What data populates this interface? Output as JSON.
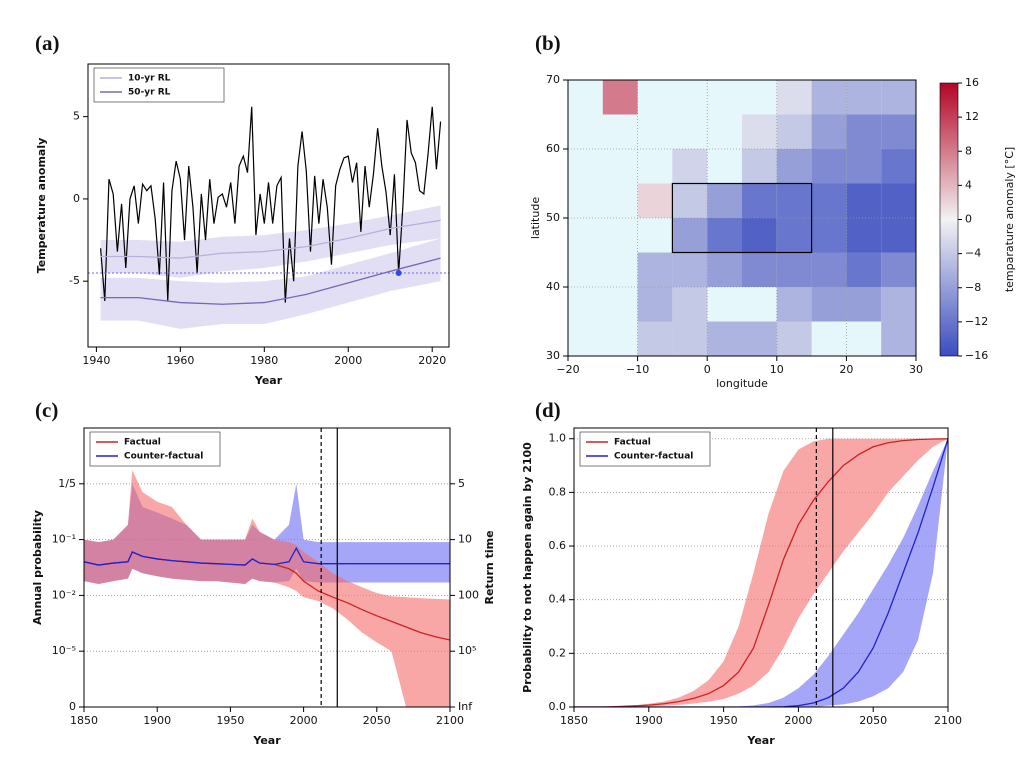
{
  "chart_data": [
    {
      "type": "line",
      "label": "(a)",
      "xlabel": "Year",
      "ylabel": "Temperature anomaly",
      "xlim": [
        1938,
        2024
      ],
      "ylim": [
        -9,
        8.2
      ],
      "xticks": [
        1940,
        1960,
        1980,
        2000,
        2020
      ],
      "yticks": [
        -5,
        0,
        5
      ],
      "legend": "upper left",
      "hline": -4.5,
      "hline_color": "#6666ff",
      "points": [
        {
          "x": 2012,
          "y": -4.5,
          "color": "#3344ee"
        }
      ],
      "series": [
        {
          "color": "#000000",
          "x": [
            1941,
            1942,
            1943,
            1944,
            1945,
            1946,
            1947,
            1948,
            1949,
            1950,
            1951,
            1952,
            1953,
            1954,
            1955,
            1956,
            1957,
            1958,
            1959,
            1960,
            1961,
            1962,
            1963,
            1964,
            1965,
            1966,
            1967,
            1968,
            1969,
            1970,
            1971,
            1972,
            1973,
            1974,
            1975,
            1976,
            1977,
            1978,
            1979,
            1980,
            1981,
            1982,
            1983,
            1984,
            1985,
            1986,
            1987,
            1988,
            1989,
            1990,
            1991,
            1992,
            1993,
            1994,
            1995,
            1996,
            1997,
            1998,
            1999,
            2000,
            2001,
            2002,
            2003,
            2004,
            2005,
            2006,
            2007,
            2008,
            2009,
            2010,
            2011,
            2012,
            2013,
            2014,
            2015,
            2016,
            2017,
            2018,
            2019,
            2020,
            2021,
            2022
          ],
          "values": [
            -3,
            -6.2,
            1.2,
            0.3,
            -3.2,
            -0.3,
            -4.2,
            0,
            0.8,
            -1.5,
            0.9,
            0.5,
            0.8,
            -1.2,
            -4.6,
            1.0,
            -6.2,
            0.5,
            2.3,
            1.2,
            -2.5,
            2,
            -0.5,
            -4.5,
            0.3,
            -2.5,
            1.2,
            -1.5,
            0.1,
            0.3,
            -0.5,
            1,
            -1.5,
            2,
            2.6,
            1.6,
            5.6,
            -2.2,
            0.3,
            -1.5,
            1,
            -1.5,
            0.8,
            1.3,
            -6.3,
            -2.4,
            -5,
            2,
            4.1,
            1.7,
            -3.2,
            1.4,
            -1.5,
            1.2,
            -0.5,
            -4,
            0.8,
            1.8,
            2.5,
            2.6,
            1,
            2.2,
            -2,
            2,
            -0.5,
            1.5,
            4.3,
            2,
            0.4,
            -2.2,
            1.5,
            -4.5,
            -0.5,
            4.8,
            2.8,
            2.2,
            0.5,
            0.3,
            2.7,
            5.6,
            1.8,
            4.7
          ]
        },
        {
          "name": "10-yr RL",
          "color": "#b8b0dc",
          "band_color": "#cfc9ec",
          "x": [
            1941,
            1950,
            1960,
            1970,
            1980,
            1990,
            2000,
            2010,
            2022
          ],
          "values": [
            -3.5,
            -3.5,
            -3.6,
            -3.3,
            -3.2,
            -2.9,
            -2.4,
            -1.8,
            -1.3
          ],
          "lower": [
            -4.5,
            -4.5,
            -4.8,
            -4.4,
            -4.2,
            -3.8,
            -3.3,
            -2.8,
            -2.4
          ],
          "upper": [
            -2.5,
            -2.5,
            -2.6,
            -2.3,
            -2.2,
            -1.9,
            -1.5,
            -1.0,
            -0.4
          ]
        },
        {
          "name": "50-yr RL",
          "color": "#7668b5",
          "band_color": "#cfc9ec",
          "x": [
            1941,
            1950,
            1960,
            1970,
            1980,
            1990,
            2000,
            2010,
            2022
          ],
          "values": [
            -6.0,
            -6.0,
            -6.3,
            -6.4,
            -6.3,
            -5.8,
            -5.1,
            -4.4,
            -3.6
          ],
          "lower": [
            -7.4,
            -7.4,
            -7.9,
            -7.6,
            -7.6,
            -7.0,
            -6.3,
            -5.6,
            -5.0
          ],
          "upper": [
            -4.8,
            -4.8,
            -5.0,
            -5.1,
            -5.0,
            -4.7,
            -4.0,
            -3.3,
            -2.4
          ]
        }
      ]
    },
    {
      "type": "heatmap",
      "label": "(b)",
      "xlabel": "longitude",
      "ylabel": "latitude",
      "clabel": "temparature anomaly [°C]",
      "xlim": [
        -20,
        30
      ],
      "ylim": [
        30,
        70
      ],
      "xticks": [
        {
          "value": -20,
          "label": "−20"
        },
        {
          "value": -10,
          "label": "−10"
        },
        0,
        10,
        20,
        30
      ],
      "yticks": [
        30,
        40,
        50,
        60,
        70
      ],
      "grid": true,
      "xbins": [
        -20,
        -15,
        -10,
        -5,
        0,
        5,
        10,
        15,
        20,
        25,
        30
      ],
      "ybins": [
        70,
        65,
        60,
        55,
        50,
        45,
        40,
        35,
        30
      ],
      "values": [
        [
          null,
          8,
          null,
          null,
          null,
          null,
          -2,
          -6,
          -6,
          -6
        ],
        [
          null,
          null,
          null,
          null,
          null,
          -2,
          -4,
          -8,
          -10,
          -10
        ],
        [
          null,
          null,
          null,
          -3,
          null,
          -4,
          -8,
          -10,
          -10,
          -12
        ],
        [
          null,
          null,
          2,
          -4,
          -8,
          -12,
          -12,
          -12,
          -14,
          -14
        ],
        [
          null,
          null,
          null,
          -8,
          -12,
          -14,
          -12,
          -12,
          -14,
          -14
        ],
        [
          null,
          null,
          -6,
          -6,
          -8,
          -10,
          -10,
          -10,
          -12,
          -10
        ],
        [
          null,
          null,
          -6,
          -4,
          null,
          null,
          -6,
          -8,
          -8,
          -6
        ],
        [
          null,
          null,
          -4,
          -4,
          -6,
          -6,
          -4,
          null,
          null,
          -6
        ]
      ],
      "box": {
        "lon": [
          -5,
          15
        ],
        "lat": [
          45,
          55
        ]
      },
      "clim": [
        -16,
        16
      ],
      "colors": [
        "#3b4cc0",
        "#f2f2f2",
        "#b40426"
      ],
      "cticks": [
        {
          "value": -16,
          "label": "−16"
        },
        {
          "value": -12,
          "label": "−12"
        },
        {
          "value": -8,
          "label": "−8"
        },
        {
          "value": -4,
          "label": "−4"
        },
        0,
        4,
        8,
        12,
        16
      ]
    },
    {
      "type": "line",
      "label": "(c)",
      "xlabel": "Year",
      "ylabel": "Annual probability",
      "y2label": "Return time",
      "xlim": [
        1850,
        2100
      ],
      "ylim": [
        0,
        0.5
      ],
      "yscale": "piecewise-log",
      "grid": true,
      "legend": "upper left",
      "xticks": [
        1850,
        1900,
        1950,
        2000,
        2050,
        2100
      ],
      "yticks": [
        0,
        {
          "value": 1e-05,
          "label": "10⁻⁵"
        },
        {
          "value": 0.01,
          "label": "10⁻²"
        },
        {
          "value": 0.1,
          "label": "10⁻¹"
        },
        {
          "value": 0.2,
          "label": "1/5"
        }
      ],
      "y2ticks": [
        5,
        10,
        100,
        {
          "value": 100000,
          "label": "10⁵"
        },
        {
          "value": null,
          "label": "Inf"
        }
      ],
      "vlines": [
        {
          "x": 2012,
          "dash": true
        },
        {
          "x": 2023,
          "dash": false
        }
      ],
      "series": [
        {
          "name": "Factual",
          "color": "#cc2222",
          "band_color": "#f36b6b",
          "x": [
            1850,
            1860,
            1870,
            1880,
            1883,
            1890,
            1900,
            1910,
            1920,
            1930,
            1940,
            1950,
            1960,
            1965,
            1970,
            1980,
            1990,
            1995,
            2000,
            2010,
            2020,
            2030,
            2040,
            2050,
            2060,
            2070,
            2080,
            2090,
            2100
          ],
          "values": [
            0.04,
            0.035,
            0.038,
            0.04,
            0.06,
            0.05,
            0.045,
            0.042,
            0.04,
            0.038,
            0.037,
            0.036,
            0.035,
            0.045,
            0.038,
            0.036,
            0.03,
            0.025,
            0.018,
            0.012,
            0.008,
            0.004,
            0.0017,
            0.0008,
            0.0004,
            0.0002,
            0.0001,
            6e-05,
            4e-05
          ],
          "lower": [
            0.018,
            0.016,
            0.018,
            0.02,
            0.03,
            0.025,
            0.022,
            0.02,
            0.019,
            0.018,
            0.018,
            0.017,
            0.016,
            0.02,
            0.018,
            0.017,
            0.014,
            0.012,
            0.008,
            0.005,
            0.002,
            0.0005,
            0.0001,
            3e-05,
            1e-05,
            0,
            0,
            0,
            0
          ],
          "upper": [
            0.1,
            0.09,
            0.1,
            0.12,
            0.25,
            0.18,
            0.16,
            0.15,
            0.12,
            0.1,
            0.1,
            0.1,
            0.1,
            0.13,
            0.11,
            0.1,
            0.09,
            0.08,
            0.06,
            0.04,
            0.025,
            0.018,
            0.014,
            0.011,
            0.009,
            0.008,
            0.007,
            0.0065,
            0.006
          ]
        },
        {
          "name": "Counter-factual",
          "color": "#2222cc",
          "band_color": "#6b6bf5",
          "x": [
            1850,
            1860,
            1870,
            1880,
            1883,
            1890,
            1900,
            1910,
            1920,
            1930,
            1940,
            1950,
            1960,
            1965,
            1970,
            1980,
            1990,
            1995,
            2000,
            2010,
            2020,
            2030,
            2040,
            2050,
            2060,
            2070,
            2080,
            2090,
            2100
          ],
          "values": [
            0.04,
            0.035,
            0.038,
            0.04,
            0.06,
            0.05,
            0.045,
            0.042,
            0.04,
            0.038,
            0.037,
            0.036,
            0.035,
            0.045,
            0.038,
            0.036,
            0.04,
            0.07,
            0.04,
            0.037,
            0.037,
            0.037,
            0.037,
            0.037,
            0.037,
            0.037,
            0.037,
            0.037,
            0.037
          ],
          "lower": [
            0.018,
            0.016,
            0.018,
            0.02,
            0.03,
            0.025,
            0.022,
            0.02,
            0.019,
            0.018,
            0.018,
            0.017,
            0.016,
            0.02,
            0.018,
            0.017,
            0.018,
            0.03,
            0.018,
            0.017,
            0.017,
            0.017,
            0.017,
            0.017,
            0.017,
            0.017,
            0.017,
            0.017,
            0.017
          ],
          "upper": [
            0.1,
            0.09,
            0.1,
            0.12,
            0.2,
            0.15,
            0.14,
            0.13,
            0.12,
            0.1,
            0.1,
            0.1,
            0.1,
            0.12,
            0.11,
            0.1,
            0.12,
            0.2,
            0.1,
            0.09,
            0.09,
            0.09,
            0.09,
            0.09,
            0.09,
            0.09,
            0.09,
            0.09,
            0.09
          ]
        }
      ]
    },
    {
      "type": "line",
      "label": "(d)",
      "xlabel": "Year",
      "ylabel": "Probability to not happen again by 2100",
      "xlim": [
        1850,
        2100
      ],
      "ylim": [
        0,
        1.04
      ],
      "grid": true,
      "legend": "upper left",
      "xticks": [
        1850,
        1900,
        1950,
        2000,
        2050,
        2100
      ],
      "yticks": [
        {
          "value": 0,
          "label": "0.0"
        },
        0.2,
        0.4,
        0.6,
        0.8,
        {
          "value": 1,
          "label": "1.0"
        }
      ],
      "vlines": [
        {
          "x": 2012,
          "dash": true
        },
        {
          "x": 2023,
          "dash": false
        }
      ],
      "series": [
        {
          "name": "Factual",
          "color": "#cc2222",
          "band_color": "#f36b6b",
          "x": [
            1850,
            1860,
            1870,
            1880,
            1890,
            1900,
            1910,
            1920,
            1930,
            1940,
            1950,
            1960,
            1970,
            1980,
            1990,
            2000,
            2010,
            2020,
            2030,
            2040,
            2050,
            2060,
            2070,
            2080,
            2090,
            2100
          ],
          "values": [
            0,
            0,
            0,
            0.002,
            0.004,
            0.007,
            0.012,
            0.02,
            0.032,
            0.05,
            0.08,
            0.13,
            0.22,
            0.38,
            0.55,
            0.68,
            0.77,
            0.84,
            0.9,
            0.94,
            0.97,
            0.985,
            0.993,
            0.997,
            0.999,
            1
          ],
          "lower": [
            0,
            0,
            0,
            0,
            0.001,
            0.002,
            0.004,
            0.008,
            0.013,
            0.02,
            0.03,
            0.05,
            0.08,
            0.13,
            0.22,
            0.33,
            0.42,
            0.5,
            0.58,
            0.65,
            0.72,
            0.8,
            0.86,
            0.92,
            0.97,
            1
          ],
          "upper": [
            0,
            0,
            0.001,
            0.003,
            0.006,
            0.012,
            0.02,
            0.035,
            0.06,
            0.1,
            0.17,
            0.3,
            0.5,
            0.72,
            0.88,
            0.96,
            0.99,
            1,
            1,
            1,
            1,
            1,
            1,
            1,
            1,
            1
          ]
        },
        {
          "name": "Counter-factual",
          "color": "#2222cc",
          "band_color": "#6b6bf5",
          "x": [
            1850,
            1860,
            1870,
            1880,
            1890,
            1900,
            1910,
            1920,
            1930,
            1940,
            1950,
            1960,
            1970,
            1980,
            1990,
            2000,
            2010,
            2020,
            2030,
            2040,
            2050,
            2060,
            2070,
            2080,
            2090,
            2100
          ],
          "values": [
            0,
            0,
            0,
            0,
            0,
            0,
            0,
            0,
            0,
            0,
            0,
            0,
            0,
            0,
            0.001,
            0.005,
            0.015,
            0.035,
            0.07,
            0.13,
            0.22,
            0.35,
            0.5,
            0.65,
            0.82,
            1
          ],
          "lower": [
            0,
            0,
            0,
            0,
            0,
            0,
            0,
            0,
            0,
            0,
            0,
            0,
            0,
            0,
            0,
            0,
            0,
            0.005,
            0.01,
            0.02,
            0.04,
            0.07,
            0.13,
            0.25,
            0.5,
            1
          ],
          "upper": [
            0,
            0,
            0,
            0,
            0,
            0,
            0,
            0,
            0,
            0,
            0,
            0.002,
            0.006,
            0.015,
            0.035,
            0.07,
            0.12,
            0.19,
            0.27,
            0.35,
            0.44,
            0.53,
            0.63,
            0.75,
            0.88,
            1
          ]
        }
      ]
    }
  ]
}
